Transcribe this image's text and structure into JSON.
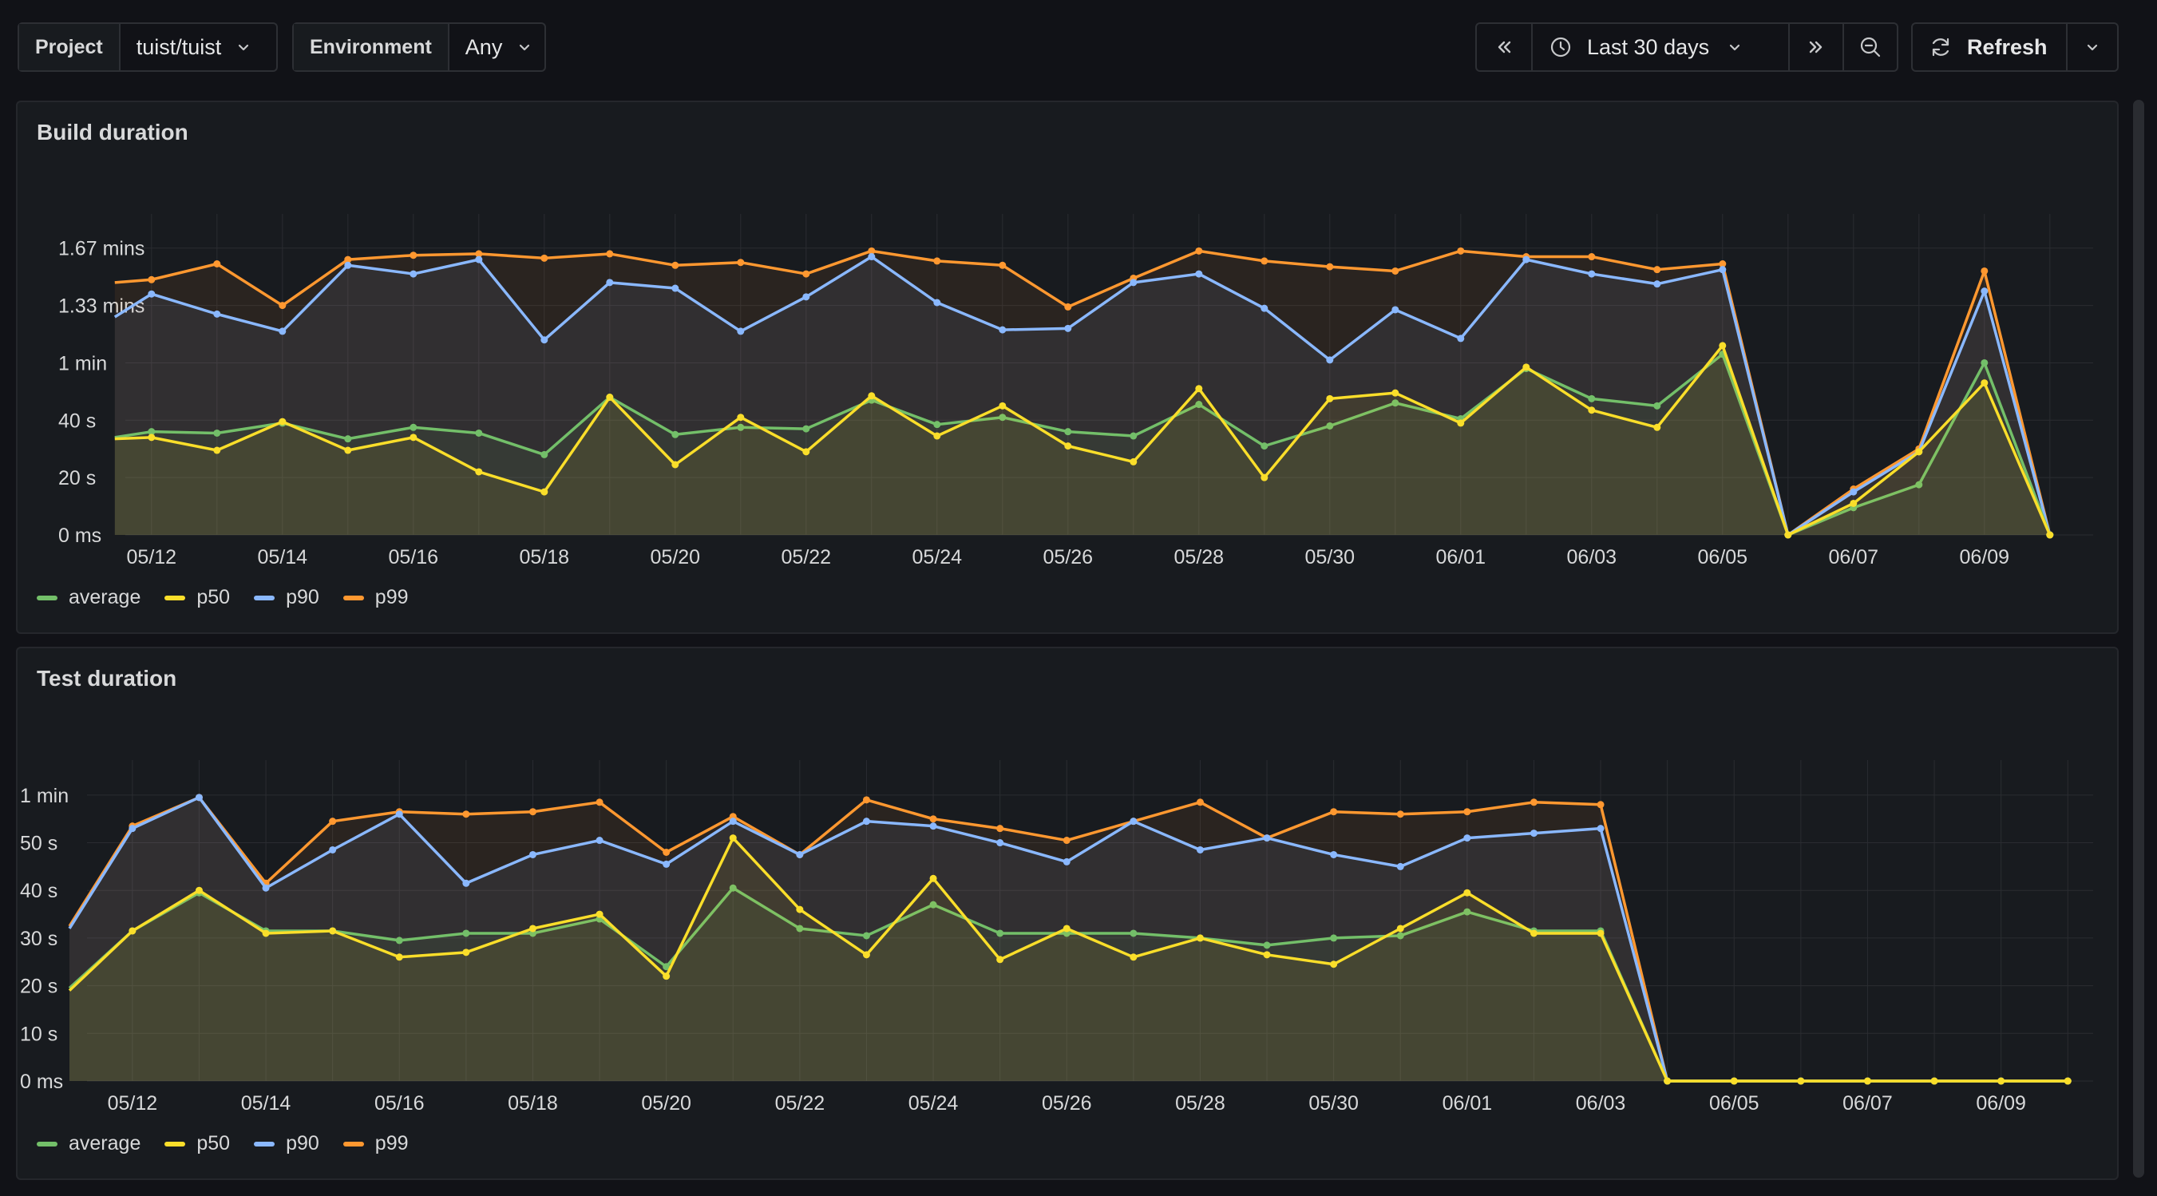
{
  "toolbar": {
    "project_label": "Project",
    "project_value": "tuist/tuist",
    "environment_label": "Environment",
    "environment_value": "Any",
    "time_range": "Last 30 days",
    "refresh_label": "Refresh"
  },
  "colors": {
    "average": "#73bf69",
    "p50": "#fade2a",
    "p90": "#8ab8ff",
    "p99": "#ff9830",
    "grid": "#2a2c31",
    "text": "#d8d9da"
  },
  "chart_data": [
    {
      "type": "line",
      "title": "Build duration",
      "unit": "seconds",
      "x": [
        "05/11",
        "05/12",
        "05/13",
        "05/14",
        "05/15",
        "05/16",
        "05/17",
        "05/18",
        "05/19",
        "05/20",
        "05/21",
        "05/22",
        "05/23",
        "05/24",
        "05/25",
        "05/26",
        "05/27",
        "05/28",
        "05/29",
        "05/30",
        "05/31",
        "06/01",
        "06/02",
        "06/03",
        "06/04",
        "06/05",
        "06/06",
        "06/07",
        "06/08",
        "06/09",
        "06/10"
      ],
      "x_start_index": 0.6,
      "x_ticks": [
        "05/12",
        "05/14",
        "05/16",
        "05/18",
        "05/20",
        "05/22",
        "05/24",
        "05/26",
        "05/28",
        "05/30",
        "06/01",
        "06/03",
        "06/05",
        "06/07",
        "06/09"
      ],
      "y_ticks": [
        {
          "value": 0,
          "label": "0 ms"
        },
        {
          "value": 20,
          "label": "20 s"
        },
        {
          "value": 40,
          "label": "40 s"
        },
        {
          "value": 60,
          "label": "1 min"
        },
        {
          "value": 80,
          "label": "1.33 mins"
        },
        {
          "value": 100,
          "label": "1.67 mins"
        }
      ],
      "ylim": [
        0,
        108
      ],
      "legend_position": "bottom-left",
      "series": [
        {
          "name": "average",
          "color_key": "average",
          "values": [
            34,
            36,
            35.5,
            39,
            33.5,
            37.5,
            35.5,
            28,
            48,
            35,
            37.5,
            37,
            47,
            38.5,
            41,
            36,
            34.5,
            45.5,
            31,
            38,
            46,
            40.5,
            58,
            47.5,
            45,
            63,
            0,
            9.5,
            17.5,
            60,
            0
          ]
        },
        {
          "name": "p50",
          "color_key": "p50",
          "values": [
            33.5,
            34,
            29.5,
            39.5,
            29.5,
            34,
            22,
            15,
            48,
            24.5,
            41,
            29,
            48.5,
            34.5,
            45,
            31,
            25.5,
            51,
            20,
            47.5,
            49.5,
            39,
            58.5,
            43.5,
            37.5,
            66,
            0,
            11,
            29,
            53,
            0
          ]
        },
        {
          "name": "p90",
          "color_key": "p90",
          "values": [
            76,
            84,
            77,
            71,
            94,
            91,
            96,
            68,
            88,
            86,
            71,
            83,
            97,
            81,
            71.5,
            72,
            88,
            91,
            79,
            61,
            78.5,
            68.5,
            96,
            91,
            87.5,
            92.5,
            0,
            15,
            29,
            85,
            0
          ]
        },
        {
          "name": "p99",
          "color_key": "p99",
          "values": [
            88,
            89,
            94.5,
            80,
            96,
            97.5,
            98,
            96.5,
            98,
            94,
            95,
            91,
            99,
            95.5,
            94,
            79.5,
            89.5,
            99,
            95.5,
            93.5,
            92,
            99,
            97,
            97,
            92.5,
            94.5,
            0,
            16,
            30,
            92,
            0
          ]
        }
      ]
    },
    {
      "type": "line",
      "title": "Test duration",
      "unit": "seconds",
      "x": [
        "05/11",
        "05/12",
        "05/13",
        "05/14",
        "05/15",
        "05/16",
        "05/17",
        "05/18",
        "05/19",
        "05/20",
        "05/21",
        "05/22",
        "05/23",
        "05/24",
        "05/25",
        "05/26",
        "05/27",
        "05/28",
        "05/29",
        "05/30",
        "05/31",
        "06/01",
        "06/02",
        "06/03",
        "06/04",
        "06/05",
        "06/06",
        "06/07",
        "06/08",
        "06/09",
        "06/10"
      ],
      "x_start_index": 0.32,
      "x_ticks": [
        "05/12",
        "05/14",
        "05/16",
        "05/18",
        "05/20",
        "05/22",
        "05/24",
        "05/26",
        "05/28",
        "05/30",
        "06/01",
        "06/03",
        "06/05",
        "06/07",
        "06/09"
      ],
      "y_ticks": [
        {
          "value": 0,
          "label": "0 ms"
        },
        {
          "value": 10,
          "label": "10 s"
        },
        {
          "value": 20,
          "label": "20 s"
        },
        {
          "value": 30,
          "label": "30 s"
        },
        {
          "value": 40,
          "label": "40 s"
        },
        {
          "value": 50,
          "label": "50 s"
        },
        {
          "value": 60,
          "label": "1 min"
        }
      ],
      "ylim": [
        0,
        65
      ],
      "legend_position": "bottom-left",
      "series": [
        {
          "name": "average",
          "color_key": "average",
          "values": [
            19.5,
            31.5,
            39.5,
            31.5,
            31.5,
            29.5,
            31,
            31,
            34,
            24,
            40.5,
            32,
            30.5,
            37,
            31,
            31,
            31,
            30,
            28.5,
            30,
            30.5,
            35.5,
            31.5,
            31.5,
            0,
            0,
            0,
            0,
            0,
            0,
            0
          ]
        },
        {
          "name": "p50",
          "color_key": "p50",
          "values": [
            19,
            31.5,
            40,
            31,
            31.5,
            26,
            27,
            32,
            35,
            22,
            51,
            36,
            26.5,
            42.5,
            25.5,
            32,
            26,
            30,
            26.5,
            24.5,
            32,
            39.5,
            31,
            31,
            0,
            0,
            0,
            0,
            0,
            0,
            0
          ]
        },
        {
          "name": "p90",
          "color_key": "p90",
          "values": [
            32,
            53,
            59.5,
            40.5,
            48.5,
            56,
            41.5,
            47.5,
            50.5,
            45.5,
            54.5,
            47.5,
            54.5,
            53.5,
            50,
            46,
            54.5,
            48.5,
            51,
            47.5,
            45,
            51,
            52,
            53,
            0,
            0,
            0,
            0,
            0,
            0,
            0
          ]
        },
        {
          "name": "p99",
          "color_key": "p99",
          "values": [
            32.5,
            53.5,
            59.5,
            41.5,
            54.5,
            56.5,
            56,
            56.5,
            58.5,
            48,
            55.5,
            47.5,
            59,
            55,
            53,
            50.5,
            54.5,
            58.5,
            51,
            56.5,
            56,
            56.5,
            58.5,
            58,
            0,
            0,
            0,
            0,
            0,
            0,
            0
          ]
        }
      ]
    }
  ]
}
